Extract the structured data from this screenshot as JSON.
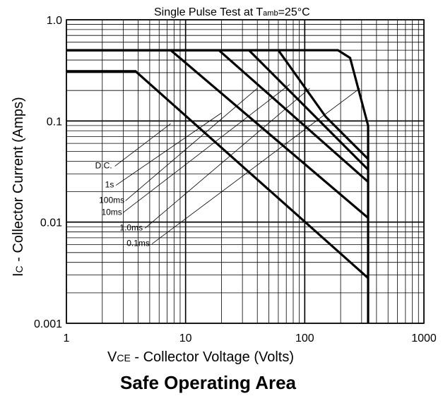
{
  "chart_data": {
    "type": "line",
    "title": "Single Pulse Test at Tamb=25°C",
    "title_parts": {
      "main": "Single Pulse Test at T",
      "sub": "amb",
      "tail": "=25°C"
    },
    "caption": "Safe Operating Area",
    "xlabel": "VCE - Collector Voltage (Volts)",
    "xlabel_parts": {
      "sym": "V",
      "sub": "CE",
      "text": " - Collector Voltage (Volts)"
    },
    "ylabel": "IC - Collector Current (Amps)",
    "ylabel_parts": {
      "sym": "I",
      "sub": "C",
      "text": " - Collector Current (Amps)"
    },
    "x_scale": "log",
    "y_scale": "log",
    "xlim": [
      1,
      1000
    ],
    "ylim": [
      0.001,
      1.0
    ],
    "grid": true,
    "x_ticks": [
      {
        "value": 1,
        "label": "1"
      },
      {
        "value": 10,
        "label": "10"
      },
      {
        "value": 100,
        "label": "100"
      },
      {
        "value": 1000,
        "label": "1000"
      }
    ],
    "y_ticks": [
      {
        "value": 1.0,
        "label": "1.0"
      },
      {
        "value": 0.1,
        "label": "0.1"
      },
      {
        "value": 0.01,
        "label": "0.01"
      },
      {
        "value": 0.001,
        "label": "0.001"
      }
    ],
    "series": [
      {
        "name": "D.C.",
        "points": [
          [
            1,
            0.31
          ],
          [
            3.8,
            0.31
          ],
          [
            340,
            0.0028
          ]
        ]
      },
      {
        "name": "1s",
        "points": [
          [
            1,
            0.5
          ],
          [
            7.5,
            0.5
          ],
          [
            340,
            0.011
          ]
        ]
      },
      {
        "name": "100ms",
        "points": [
          [
            1,
            0.5
          ],
          [
            19,
            0.5
          ],
          [
            340,
            0.025
          ]
        ]
      },
      {
        "name": "10ms",
        "points": [
          [
            1,
            0.5
          ],
          [
            34,
            0.5
          ],
          [
            340,
            0.033
          ]
        ]
      },
      {
        "name": "1.0ms",
        "points": [
          [
            1,
            0.5
          ],
          [
            60,
            0.5
          ],
          [
            150,
            0.11
          ],
          [
            340,
            0.042
          ]
        ]
      },
      {
        "name": "0.1ms",
        "points": [
          [
            1,
            0.5
          ],
          [
            190,
            0.5
          ],
          [
            240,
            0.42
          ],
          [
            340,
            0.09
          ],
          [
            340,
            0.001
          ]
        ]
      }
    ],
    "annotations": [
      {
        "label": "D.C.",
        "series": "D.C.",
        "anchor": [
          7.5,
          0.094
        ],
        "text_pos": [
          2.05,
          0.034
        ]
      },
      {
        "label": "1s",
        "series": "1s",
        "anchor": [
          20,
          0.12
        ],
        "text_pos": [
          2.3,
          0.022
        ]
      },
      {
        "label": "100ms",
        "series": "100ms",
        "anchor": [
          40,
          0.21
        ],
        "text_pos": [
          2.4,
          0.0155
        ]
      },
      {
        "label": "10ms",
        "series": "10ms",
        "anchor": [
          75,
          0.23
        ],
        "text_pos": [
          2.4,
          0.0118
        ]
      },
      {
        "label": "1.0ms",
        "series": "1.0ms",
        "anchor": [
          110,
          0.21
        ],
        "text_pos": [
          3.5,
          0.0083
        ]
      },
      {
        "label": "0.1ms",
        "series": "0.1ms",
        "anchor": [
          290,
          0.21
        ],
        "text_pos": [
          4.0,
          0.0058
        ]
      }
    ],
    "line_color": "#000000",
    "grid_color": "#000000"
  }
}
